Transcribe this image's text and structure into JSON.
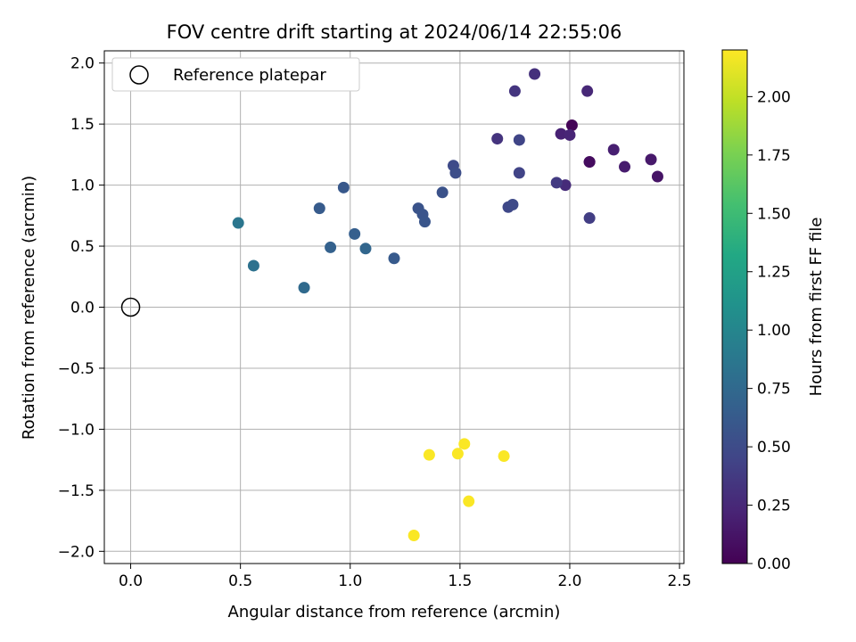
{
  "chart_data": {
    "type": "scatter",
    "title": "FOV centre drift starting at 2024/06/14 22:55:06",
    "xlabel": "Angular distance from reference (arcmin)",
    "ylabel": "Rotation from reference (arcmin)",
    "xlim": [
      -0.12,
      2.52
    ],
    "ylim": [
      -2.1,
      2.1
    ],
    "x_ticks": [
      0.0,
      0.5,
      1.0,
      1.5,
      2.0,
      2.5
    ],
    "x_tick_labels": [
      "0.0",
      "0.5",
      "1.0",
      "1.5",
      "2.0",
      "2.5"
    ],
    "y_ticks": [
      2.0,
      1.5,
      1.0,
      0.5,
      0.0,
      -0.5,
      -1.0,
      -1.5,
      -2.0
    ],
    "y_tick_labels": [
      "2.0",
      "1.5",
      "1.0",
      "0.5",
      "0.0",
      "−0.5",
      "−1.0",
      "−1.5",
      "−2.0"
    ],
    "grid": true,
    "legend": {
      "location": "top-left",
      "label": "Reference platepar"
    },
    "reference_point": {
      "x": 0.0,
      "y": 0.0
    },
    "colorbar": {
      "label": "Hours from first FF file",
      "colormap": "viridis",
      "range": [
        0.0,
        2.2
      ],
      "ticks": [
        0.0,
        0.25,
        0.5,
        0.75,
        1.0,
        1.25,
        1.5,
        1.75,
        2.0
      ],
      "tick_labels": [
        "0.00",
        "0.25",
        "0.50",
        "0.75",
        "1.00",
        "1.25",
        "1.50",
        "1.75",
        "2.00"
      ]
    },
    "points": [
      {
        "x": 2.01,
        "y": 1.49,
        "c": 0.02
      },
      {
        "x": 2.09,
        "y": 1.19,
        "c": 0.04
      },
      {
        "x": 2.09,
        "y": 1.19,
        "c": 0.07
      },
      {
        "x": 2.4,
        "y": 1.07,
        "c": 0.12
      },
      {
        "x": 2.37,
        "y": 1.21,
        "c": 0.15
      },
      {
        "x": 2.25,
        "y": 1.15,
        "c": 0.17
      },
      {
        "x": 2.2,
        "y": 1.29,
        "c": 0.19
      },
      {
        "x": 1.96,
        "y": 1.42,
        "c": 0.21
      },
      {
        "x": 2.0,
        "y": 1.41,
        "c": 0.23
      },
      {
        "x": 2.08,
        "y": 1.77,
        "c": 0.25
      },
      {
        "x": 1.98,
        "y": 1.0,
        "c": 0.27
      },
      {
        "x": 1.84,
        "y": 1.91,
        "c": 0.3
      },
      {
        "x": 1.67,
        "y": 1.38,
        "c": 0.33
      },
      {
        "x": 1.75,
        "y": 1.77,
        "c": 0.34
      },
      {
        "x": 1.94,
        "y": 1.02,
        "c": 0.38
      },
      {
        "x": 2.09,
        "y": 0.73,
        "c": 0.4
      },
      {
        "x": 1.77,
        "y": 1.1,
        "c": 0.44
      },
      {
        "x": 1.77,
        "y": 1.37,
        "c": 0.45
      },
      {
        "x": 1.72,
        "y": 0.82,
        "c": 0.47
      },
      {
        "x": 1.74,
        "y": 0.84,
        "c": 0.49
      },
      {
        "x": 1.47,
        "y": 1.16,
        "c": 0.5
      },
      {
        "x": 1.48,
        "y": 1.1,
        "c": 0.52
      },
      {
        "x": 1.42,
        "y": 0.94,
        "c": 0.55
      },
      {
        "x": 1.31,
        "y": 0.81,
        "c": 0.56
      },
      {
        "x": 1.33,
        "y": 0.76,
        "c": 0.57
      },
      {
        "x": 1.34,
        "y": 0.7,
        "c": 0.58
      },
      {
        "x": 1.2,
        "y": 0.4,
        "c": 0.62
      },
      {
        "x": 0.97,
        "y": 0.98,
        "c": 0.6
      },
      {
        "x": 0.86,
        "y": 0.81,
        "c": 0.63
      },
      {
        "x": 1.02,
        "y": 0.6,
        "c": 0.66
      },
      {
        "x": 0.91,
        "y": 0.49,
        "c": 0.68
      },
      {
        "x": 1.07,
        "y": 0.48,
        "c": 0.72
      },
      {
        "x": 0.79,
        "y": 0.16,
        "c": 0.76
      },
      {
        "x": 0.56,
        "y": 0.34,
        "c": 0.82
      },
      {
        "x": 0.49,
        "y": 0.69,
        "c": 0.86
      },
      {
        "x": 1.52,
        "y": -1.12,
        "c": 2.19
      },
      {
        "x": 1.49,
        "y": -1.2,
        "c": 2.19
      },
      {
        "x": 1.36,
        "y": -1.21,
        "c": 2.19
      },
      {
        "x": 1.7,
        "y": -1.22,
        "c": 2.19
      },
      {
        "x": 1.54,
        "y": -1.59,
        "c": 2.19
      },
      {
        "x": 1.29,
        "y": -1.87,
        "c": 2.19
      }
    ]
  }
}
